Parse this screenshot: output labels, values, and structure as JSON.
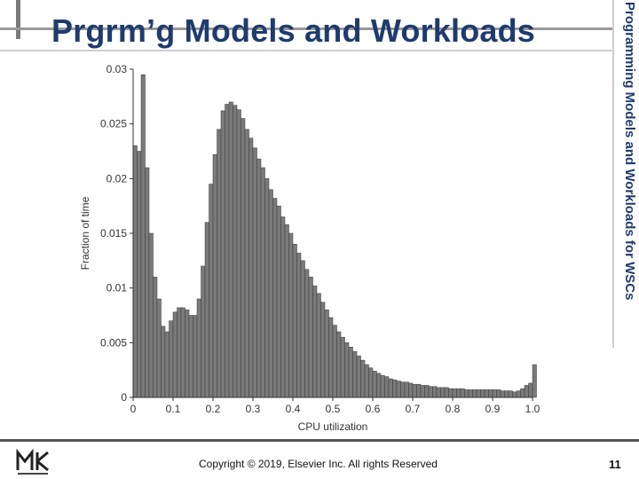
{
  "slide": {
    "title": "Prgrm’g Models and Workloads",
    "side_title": "Programming Models and Workloads for WSCs",
    "copyright": "Copyright © 2019, Elsevier Inc. All rights Reserved",
    "page_number": "11",
    "logo_icon": "mk-logo-icon",
    "title_color": "#1f3b6e"
  },
  "chart_data": {
    "type": "bar",
    "title": "",
    "xlabel": "CPU utilization",
    "ylabel": "Fraction of time",
    "xlim": [
      0,
      1.0
    ],
    "ylim": [
      0,
      0.03
    ],
    "x_ticks": [
      "0",
      "0.1",
      "0.2",
      "0.3",
      "0.4",
      "0.5",
      "0.6",
      "0.7",
      "0.8",
      "0.9",
      "1.0"
    ],
    "y_ticks": [
      "0",
      "0.005",
      "0.01",
      "0.015",
      "0.02",
      "0.025",
      "0.03"
    ],
    "bin_width": 0.01,
    "bar_color": "#7a7a7a",
    "values": [
      0.023,
      0.0225,
      0.0295,
      0.021,
      0.015,
      0.011,
      0.009,
      0.0065,
      0.006,
      0.007,
      0.0078,
      0.0082,
      0.0082,
      0.008,
      0.0075,
      0.0075,
      0.009,
      0.012,
      0.016,
      0.0195,
      0.0222,
      0.0245,
      0.0262,
      0.0268,
      0.027,
      0.0267,
      0.0263,
      0.0255,
      0.0245,
      0.0237,
      0.0228,
      0.0218,
      0.021,
      0.02,
      0.019,
      0.0182,
      0.0175,
      0.0165,
      0.0158,
      0.015,
      0.014,
      0.0132,
      0.0125,
      0.0117,
      0.011,
      0.0102,
      0.0095,
      0.0087,
      0.008,
      0.0073,
      0.0066,
      0.006,
      0.0055,
      0.005,
      0.0046,
      0.0042,
      0.0038,
      0.0034,
      0.003,
      0.0027,
      0.0024,
      0.0022,
      0.002,
      0.0019,
      0.0017,
      0.0016,
      0.0015,
      0.0014,
      0.0014,
      0.0013,
      0.0012,
      0.0012,
      0.0011,
      0.0011,
      0.001,
      0.001,
      0.0009,
      0.0009,
      0.0009,
      0.0008,
      0.0008,
      0.0008,
      0.0008,
      0.0007,
      0.0007,
      0.0007,
      0.0007,
      0.0007,
      0.0007,
      0.0007,
      0.0007,
      0.0007,
      0.0006,
      0.0006,
      0.0006,
      0.0005,
      0.0006,
      0.0008,
      0.0011,
      0.0013,
      0.003
    ]
  }
}
